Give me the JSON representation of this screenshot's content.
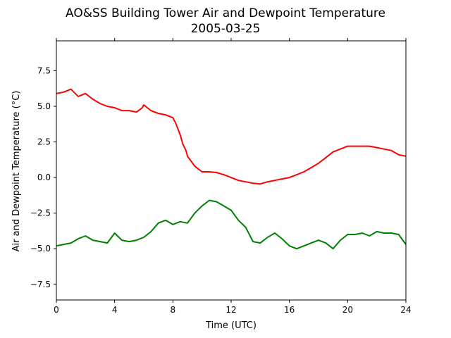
{
  "chart_data": {
    "type": "line",
    "title": "AO&SS Building Tower Air and Dewpoint Temperature",
    "subtitle": "2005-03-25",
    "xlabel": "Time (UTC)",
    "ylabel": "Air and Dewpoint Temperature (°C)",
    "xlim": [
      0,
      24
    ],
    "ylim": [
      -8.6,
      9.6
    ],
    "xticks": [
      0,
      4,
      8,
      12,
      16,
      20,
      24
    ],
    "xtick_labels": [
      "0",
      "4",
      "8",
      "12",
      "16",
      "20",
      "24"
    ],
    "yticks": [
      -7.5,
      -5.0,
      -2.5,
      0.0,
      2.5,
      5.0,
      7.5
    ],
    "ytick_labels": [
      "−7.5",
      "−5.0",
      "−2.5",
      "0.0",
      "2.5",
      "5.0",
      "7.5"
    ],
    "grid": false,
    "legend": "none",
    "series": [
      {
        "color": "#ff0000",
        "x": [
          0,
          0.5,
          1.0,
          1.5,
          2.0,
          2.5,
          3.0,
          3.5,
          4.0,
          4.5,
          5.0,
          5.5,
          5.9,
          6.0,
          6.5,
          7.0,
          7.5,
          8.0,
          8.2,
          8.5,
          8.7,
          8.9,
          9.0,
          9.5,
          10.0,
          10.5,
          11.0,
          11.5,
          12.0,
          12.5,
          13.0,
          13.5,
          14.0,
          14.5,
          15.0,
          15.5,
          16.0,
          16.5,
          17.0,
          17.5,
          18.0,
          18.5,
          19.0,
          19.5,
          20.0,
          20.5,
          21.0,
          21.5,
          22.0,
          22.5,
          23.0,
          23.5,
          24.0
        ],
        "values": [
          5.9,
          6.0,
          6.2,
          5.7,
          5.9,
          5.5,
          5.2,
          5.0,
          4.9,
          4.7,
          4.7,
          4.6,
          4.9,
          5.1,
          4.7,
          4.5,
          4.4,
          4.2,
          3.8,
          3.0,
          2.3,
          1.9,
          1.5,
          0.8,
          0.4,
          0.4,
          0.35,
          0.2,
          0.0,
          -0.2,
          -0.3,
          -0.4,
          -0.45,
          -0.3,
          -0.2,
          -0.1,
          0.0,
          0.2,
          0.4,
          0.7,
          1.0,
          1.4,
          1.8,
          2.0,
          2.2,
          2.2,
          2.2,
          2.2,
          2.1,
          2.0,
          1.9,
          1.6,
          1.5
        ]
      },
      {
        "color": "#008000",
        "x": [
          0,
          0.5,
          1.0,
          1.5,
          2.0,
          2.5,
          3.0,
          3.5,
          4.0,
          4.5,
          5.0,
          5.5,
          6.0,
          6.5,
          7.0,
          7.5,
          8.0,
          8.5,
          9.0,
          9.5,
          10.0,
          10.5,
          11.0,
          11.5,
          12.0,
          12.5,
          13.0,
          13.5,
          14.0,
          14.5,
          15.0,
          15.5,
          16.0,
          16.5,
          17.0,
          17.5,
          18.0,
          18.5,
          19.0,
          19.5,
          20.0,
          20.5,
          21.0,
          21.5,
          22.0,
          22.5,
          23.0,
          23.5,
          24.0
        ],
        "values": [
          -4.8,
          -4.7,
          -4.6,
          -4.3,
          -4.1,
          -4.4,
          -4.5,
          -4.6,
          -3.9,
          -4.4,
          -4.5,
          -4.4,
          -4.2,
          -3.8,
          -3.2,
          -3.0,
          -3.3,
          -3.1,
          -3.2,
          -2.5,
          -2.0,
          -1.6,
          -1.7,
          -2.0,
          -2.3,
          -3.0,
          -3.5,
          -4.5,
          -4.6,
          -4.2,
          -3.9,
          -4.3,
          -4.8,
          -5.0,
          -4.8,
          -4.6,
          -4.4,
          -4.6,
          -5.0,
          -4.4,
          -4.0,
          -4.0,
          -3.9,
          -4.1,
          -3.8,
          -3.9,
          -3.9,
          -4.0,
          -4.7
        ]
      }
    ]
  }
}
